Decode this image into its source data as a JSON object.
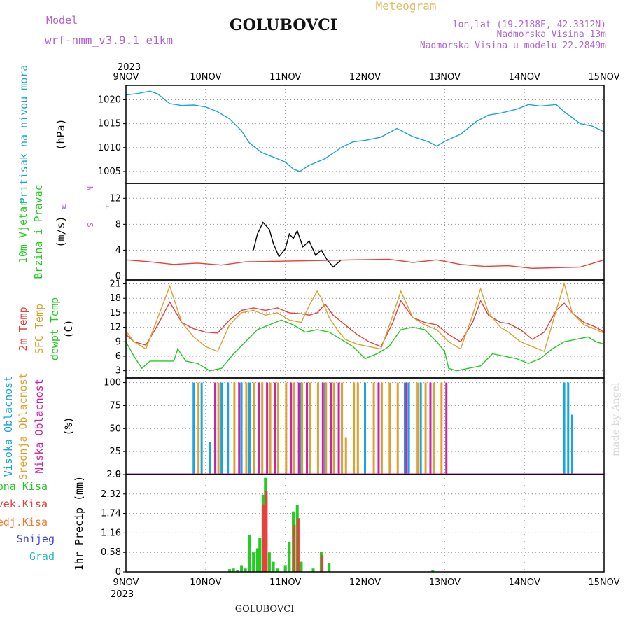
{
  "header": {
    "model_label": "Model",
    "model_name": "wrf-nmm_v3.9.1 e1km",
    "station": "GOLUBOVCI",
    "meteogram": "Meteogram",
    "lonlat": "lon,lat (19.2188E, 42.3312N)",
    "elev": "Nadmorska Visina 13m",
    "elev_model": "Nadmorska Visina u modelu 22.2849m",
    "footer_station": "GOLUBOVCI",
    "credit": "made by Angel"
  },
  "colors": {
    "pressure": "#19a3e0",
    "t2m": "#e8403a",
    "sfc": "#e0a030",
    "dew": "#22cc22",
    "high_cloud": "#19a3e0",
    "mid_cloud": "#e0a030",
    "low_cloud": "#cc22aa",
    "precip_total": "#22cc22",
    "precip_conv": "#e8403a",
    "precip_frozen": "#f07a30",
    "snow": "#4444dd",
    "grad": "#22bbbb",
    "wind_purple": "#8a2be2",
    "wind_cyan": "#1fbcd0"
  },
  "chart_data": {
    "x_axis": {
      "year_top": "2023",
      "year_bottom": "2023",
      "labels": [
        "9NOV",
        "10NOV",
        "11NOV",
        "12NOV",
        "13NOV",
        "14NOV",
        "15NOV"
      ],
      "start": 0,
      "end": 6
    },
    "panels": [
      {
        "id": "pressure",
        "type": "line",
        "ylabels": [
          "Pritisak na nivou mora",
          "(hPa)"
        ],
        "yticks": [
          1005,
          1010,
          1015,
          1020
        ],
        "ylim": [
          1002.5,
          1023
        ],
        "series": [
          {
            "color": "pressure",
            "x": [
              0,
              0.15,
              0.3,
              0.4,
              0.55,
              0.7,
              0.85,
              1.0,
              1.15,
              1.3,
              1.45,
              1.55,
              1.7,
              1.85,
              2.0,
              2.1,
              2.18,
              2.3,
              2.5,
              2.7,
              2.85,
              3.0,
              3.2,
              3.4,
              3.6,
              3.8,
              3.9,
              4.0,
              4.2,
              4.4,
              4.55,
              4.7,
              4.9,
              5.05,
              5.2,
              5.4,
              5.5,
              5.7,
              5.85,
              6.0
            ],
            "values": [
              1021,
              1021.3,
              1021.8,
              1021.2,
              1019.2,
              1018.8,
              1018.9,
              1018.5,
              1017.5,
              1016.0,
              1013.5,
              1011.0,
              1009.0,
              1008.0,
              1007.0,
              1005.5,
              1005.0,
              1006.3,
              1007.7,
              1010.0,
              1011.2,
              1011.5,
              1012.2,
              1014.0,
              1012.3,
              1011.2,
              1010.3,
              1011.3,
              1012.8,
              1015.5,
              1016.8,
              1017.2,
              1018.0,
              1019.0,
              1018.7,
              1019.0,
              1017.5,
              1015.0,
              1014.5,
              1013.3
            ]
          }
        ]
      },
      {
        "id": "wind",
        "type": "line",
        "ylabels": [
          "10m Vjetar",
          "Brzina i Pravac",
          "(m/s)"
        ],
        "compass_labels": [
          "W",
          "E",
          "N",
          "S"
        ],
        "yticks": [
          0,
          4,
          8,
          12
        ],
        "ylim": [
          -0.6,
          14.3
        ],
        "series": [
          {
            "color": "#000000",
            "x": [
              1.6,
              1.65,
              1.72,
              1.8,
              1.85,
              1.92,
              2.0,
              2.05,
              2.1,
              2.15,
              2.22,
              2.3,
              2.38,
              2.45,
              2.52,
              2.6,
              2.7
            ],
            "values": [
              4,
              6.5,
              8.3,
              7.2,
              5.0,
              3.0,
              4.2,
              6.5,
              5.8,
              7.0,
              4.5,
              5.4,
              3.2,
              4.0,
              2.6,
              1.4,
              2.5
            ]
          },
          {
            "color": "t2m",
            "x": [
              0,
              0.3,
              0.6,
              0.9,
              1.2,
              1.5,
              3.3,
              3.6,
              3.9,
              4.2,
              4.5,
              4.8,
              5.1,
              5.4,
              5.7,
              6.0
            ],
            "values": [
              2.5,
              2.2,
              1.8,
              2.0,
              1.7,
              2.2,
              2.6,
              2.1,
              2.5,
              1.8,
              1.5,
              1.6,
              1.2,
              1.3,
              1.4,
              2.5
            ]
          }
        ]
      },
      {
        "id": "temperature",
        "type": "line",
        "ylabels": [
          "2m Temp",
          "SFC Temp",
          "dewpt Temp",
          "(C)"
        ],
        "yticks": [
          3,
          6,
          9,
          12,
          15,
          18,
          21
        ],
        "ylim": [
          1.5,
          21.8
        ],
        "series": [
          {
            "color": "t2m",
            "x": [
              0,
              0.1,
              0.25,
              0.4,
              0.55,
              0.7,
              0.85,
              1.0,
              1.15,
              1.3,
              1.45,
              1.6,
              1.75,
              1.9,
              2.05,
              2.2,
              2.3,
              2.4,
              2.5,
              2.6,
              2.75,
              2.9,
              3.05,
              3.2,
              3.35,
              3.45,
              3.6,
              3.75,
              3.9,
              4.05,
              4.2,
              4.35,
              4.45,
              4.55,
              4.7,
              4.8,
              4.95,
              5.1,
              5.25,
              5.4,
              5.5,
              5.6,
              5.75,
              5.9,
              6.0
            ],
            "values": [
              10.5,
              9.0,
              8.3,
              12.5,
              17.2,
              13.0,
              11.7,
              11.0,
              10.8,
              13.5,
              15.5,
              16.0,
              15.5,
              16.0,
              15.0,
              14.8,
              14.5,
              15.0,
              16.8,
              14.5,
              12.5,
              10.5,
              9.0,
              8.0,
              13.0,
              17.5,
              14.0,
              13.0,
              12.5,
              10.5,
              9.0,
              13.0,
              17.5,
              14.5,
              13.0,
              12.8,
              11.5,
              9.5,
              11.0,
              15.5,
              17.0,
              15.0,
              13.0,
              12.0,
              11.0
            ]
          },
          {
            "color": "sfc",
            "x": [
              0,
              0.1,
              0.25,
              0.4,
              0.55,
              0.7,
              0.85,
              1.0,
              1.15,
              1.3,
              1.45,
              1.6,
              1.75,
              1.9,
              2.05,
              2.2,
              2.3,
              2.4,
              2.45,
              2.55,
              2.65,
              2.75,
              2.9,
              3.05,
              3.2,
              3.35,
              3.45,
              3.6,
              3.75,
              3.9,
              4.05,
              4.2,
              4.35,
              4.45,
              4.55,
              4.7,
              4.8,
              4.95,
              5.1,
              5.25,
              5.4,
              5.5,
              5.6,
              5.75,
              5.9,
              6.0
            ],
            "values": [
              11.2,
              9.0,
              7.5,
              14.0,
              20.5,
              13.0,
              10.0,
              8.0,
              7.0,
              12.5,
              15.0,
              15.5,
              14.5,
              15.0,
              13.5,
              13.0,
              16.5,
              19.5,
              18.0,
              14.0,
              11.5,
              9.5,
              8.5,
              8.0,
              7.5,
              14.5,
              19.5,
              14.0,
              12.5,
              11.5,
              9.0,
              7.5,
              14.5,
              20.0,
              15.0,
              12.0,
              11.0,
              9.0,
              8.0,
              7.0,
              15.5,
              21.0,
              15.0,
              12.5,
              11.5,
              10.8
            ]
          },
          {
            "color": "dew",
            "x": [
              0,
              0.1,
              0.2,
              0.3,
              0.45,
              0.6,
              0.65,
              0.75,
              0.9,
              1.05,
              1.2,
              1.35,
              1.5,
              1.65,
              1.8,
              1.95,
              2.1,
              2.25,
              2.4,
              2.55,
              2.7,
              2.85,
              3.0,
              3.15,
              3.3,
              3.45,
              3.6,
              3.75,
              3.9,
              4.0,
              4.05,
              4.15,
              4.3,
              4.45,
              4.6,
              4.75,
              4.9,
              5.05,
              5.2,
              5.35,
              5.5,
              5.65,
              5.8,
              5.9,
              6.0
            ],
            "values": [
              9.0,
              6.0,
              3.5,
              5.0,
              5.0,
              5.0,
              7.5,
              5.0,
              4.5,
              3.0,
              3.5,
              6.5,
              9.0,
              11.5,
              12.5,
              13.5,
              12.5,
              11.0,
              11.5,
              11.0,
              9.5,
              8.0,
              5.5,
              6.5,
              8.0,
              11.5,
              12.0,
              11.5,
              9.0,
              7.0,
              3.5,
              3.0,
              3.5,
              4.0,
              6.5,
              6.0,
              5.5,
              4.5,
              5.5,
              7.5,
              9.0,
              9.5,
              10.0,
              9.0,
              8.5
            ]
          }
        ]
      },
      {
        "id": "cloud",
        "type": "bar",
        "ylabels": [
          "Visoka Oblacnost",
          "Srednja Oblacnost",
          "Niska Oblacnost",
          "(%)"
        ],
        "yticks": [
          0,
          25,
          50,
          75,
          100
        ],
        "ylim": [
          0,
          105
        ],
        "series": [
          {
            "color": "high_cloud",
            "x": [
              0.85,
              0.95,
              1.05,
              1.12,
              1.2,
              1.28,
              1.45,
              1.55,
              2.2,
              2.5,
              3.0,
              3.5,
              3.55,
              3.7,
              5.5,
              5.55,
              5.6
            ],
            "values": [
              100,
              100,
              35,
              100,
              100,
              100,
              100,
              100,
              100,
              100,
              100,
              100,
              100,
              100,
              100,
              100,
              65
            ]
          },
          {
            "color": "mid_cloud",
            "x": [
              0.9,
              1.15,
              1.35,
              1.5,
              1.6,
              1.7,
              1.8,
              1.9,
              2.0,
              2.1,
              2.2,
              2.3,
              2.4,
              2.5,
              2.6,
              2.7,
              2.75,
              2.85,
              2.9,
              3.1,
              3.2,
              3.3,
              3.4,
              3.65,
              3.75,
              3.85,
              3.95
            ],
            "values": [
              100,
              100,
              100,
              100,
              100,
              100,
              100,
              100,
              100,
              100,
              100,
              100,
              100,
              100,
              100,
              100,
              40,
              100,
              100,
              100,
              100,
              100,
              100,
              100,
              100,
              100,
              100
            ]
          },
          {
            "color": "low_cloud",
            "x": [
              1.1,
              1.4,
              1.65,
              1.75,
              1.85,
              2.05,
              2.15,
              2.25,
              2.45,
              2.55,
              2.65,
              3.15,
              3.5,
              3.8,
              4.0
            ],
            "values": [
              100,
              100,
              100,
              100,
              100,
              100,
              100,
              100,
              100,
              100,
              100,
              100,
              100,
              100,
              100
            ]
          }
        ]
      },
      {
        "id": "precip",
        "type": "bar",
        "ylabels": [
          "Ukupna Kisa",
          "Konvek.Kisa",
          "Zaledj.Kisa",
          "Snijeg",
          "Grad",
          "1hr Precip (mm)"
        ],
        "yticks": [
          0,
          0.58,
          1.16,
          1.74,
          2.32,
          2.9
        ],
        "ylim": [
          0,
          2.9
        ],
        "series": [
          {
            "color": "precip_total",
            "x": [
              1.3,
              1.35,
              1.4,
              1.45,
              1.5,
              1.55,
              1.6,
              1.65,
              1.68,
              1.72,
              1.75,
              1.8,
              1.85,
              1.9,
              2.0,
              2.05,
              2.1,
              2.15,
              2.2,
              2.35,
              2.45,
              2.55,
              3.85
            ],
            "values": [
              0.08,
              0.1,
              0.05,
              0.2,
              0.1,
              1.1,
              0.58,
              0.7,
              1.0,
              2.3,
              2.8,
              0.58,
              0.3,
              0.1,
              0.2,
              0.9,
              1.8,
              2.0,
              0.3,
              0.1,
              0.6,
              0.25,
              0.05
            ]
          },
          {
            "color": "precip_conv",
            "x": [
              1.72,
              1.75,
              2.1,
              2.15,
              2.45
            ],
            "values": [
              2.0,
              2.4,
              1.4,
              1.6,
              0.5
            ]
          }
        ]
      }
    ]
  }
}
